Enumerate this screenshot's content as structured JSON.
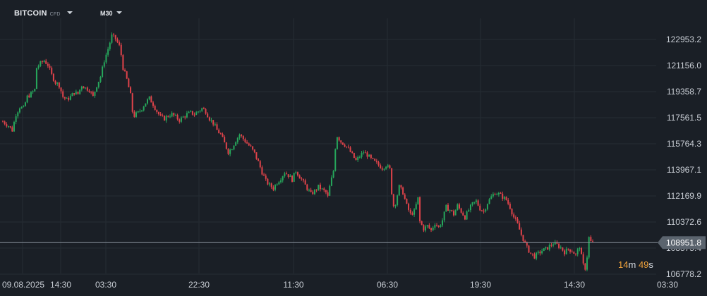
{
  "header": {
    "symbol": "BITCOIN",
    "symbol_type": "CFD",
    "timeframe": "M30"
  },
  "countdown": {
    "minutes": "14",
    "minutes_unit": "m",
    "seconds": "49",
    "seconds_unit": "s"
  },
  "colors": {
    "background": "#1a1f26",
    "grid": "#252c34",
    "up": "#26a65b",
    "down": "#e0434a",
    "price_line": "#8a939d",
    "price_tag_bg": "#5b646e",
    "countdown": "#f0a23a"
  },
  "chart_data": {
    "type": "candlestick",
    "instrument": "BITCOIN CFD",
    "timeframe": "M30",
    "y_ticks": [
      "122953.2",
      "121156.0",
      "119358.7",
      "117561.5",
      "115764.3",
      "113967.1",
      "112169.9",
      "110372.6",
      "108575.4",
      "106778.2"
    ],
    "y_range": [
      106778.2,
      122953.2
    ],
    "current_price": "108951.8",
    "x_ticks": [
      "09.08.2025",
      "14:30",
      "03:30",
      "22:30",
      "11:30",
      "06:30",
      "19:30",
      "14:30",
      "03:30"
    ],
    "grid": true,
    "close_path": [
      [
        0,
        117300
      ],
      [
        3,
        117000
      ],
      [
        5,
        116700
      ],
      [
        7,
        117800
      ],
      [
        9,
        118300
      ],
      [
        11,
        118200
      ],
      [
        13,
        119000
      ],
      [
        15,
        119200
      ],
      [
        17,
        119500
      ],
      [
        18,
        121000
      ],
      [
        20,
        121300
      ],
      [
        22,
        121500
      ],
      [
        24,
        121200
      ],
      [
        26,
        120500
      ],
      [
        28,
        120000
      ],
      [
        30,
        119800
      ],
      [
        32,
        119000
      ],
      [
        34,
        118800
      ],
      [
        36,
        119000
      ],
      [
        38,
        119300
      ],
      [
        40,
        119200
      ],
      [
        42,
        119800
      ],
      [
        44,
        119600
      ],
      [
        46,
        119500
      ],
      [
        48,
        119000
      ],
      [
        50,
        119800
      ],
      [
        52,
        120400
      ],
      [
        54,
        121500
      ],
      [
        56,
        122300
      ],
      [
        58,
        123200
      ],
      [
        60,
        123000
      ],
      [
        62,
        122500
      ],
      [
        63,
        121900
      ],
      [
        64,
        121000
      ],
      [
        66,
        120200
      ],
      [
        68,
        119100
      ],
      [
        69,
        118000
      ],
      [
        70,
        117700
      ],
      [
        72,
        117900
      ],
      [
        74,
        118200
      ],
      [
        76,
        118600
      ],
      [
        78,
        118900
      ],
      [
        80,
        118500
      ],
      [
        82,
        118000
      ],
      [
        84,
        117600
      ],
      [
        86,
        117500
      ],
      [
        88,
        117700
      ],
      [
        90,
        117800
      ],
      [
        92,
        117600
      ],
      [
        94,
        117400
      ],
      [
        96,
        117600
      ],
      [
        98,
        117800
      ],
      [
        100,
        117900
      ],
      [
        102,
        117800
      ],
      [
        104,
        118000
      ],
      [
        106,
        118200
      ],
      [
        108,
        118000
      ],
      [
        110,
        117500
      ],
      [
        112,
        117200
      ],
      [
        114,
        116700
      ],
      [
        116,
        116400
      ],
      [
        118,
        115800
      ],
      [
        120,
        115200
      ],
      [
        122,
        115500
      ],
      [
        124,
        116000
      ],
      [
        126,
        116400
      ],
      [
        128,
        116100
      ],
      [
        130,
        115800
      ],
      [
        132,
        115500
      ],
      [
        134,
        115100
      ],
      [
        136,
        114500
      ],
      [
        138,
        113800
      ],
      [
        140,
        113200
      ],
      [
        142,
        112900
      ],
      [
        144,
        112700
      ],
      [
        146,
        113100
      ],
      [
        148,
        113400
      ],
      [
        150,
        113800
      ],
      [
        152,
        113600
      ],
      [
        154,
        113300
      ],
      [
        156,
        113900
      ],
      [
        158,
        113500
      ],
      [
        160,
        113100
      ],
      [
        162,
        112700
      ],
      [
        164,
        112300
      ],
      [
        166,
        112500
      ],
      [
        168,
        112800
      ],
      [
        170,
        112600
      ],
      [
        172,
        112400
      ],
      [
        173,
        112100
      ],
      [
        174,
        112800
      ],
      [
        176,
        113900
      ],
      [
        177,
        115500
      ],
      [
        178,
        116300
      ],
      [
        180,
        115900
      ],
      [
        182,
        115700
      ],
      [
        184,
        115400
      ],
      [
        186,
        115000
      ],
      [
        188,
        114600
      ],
      [
        190,
        114900
      ],
      [
        192,
        115200
      ],
      [
        194,
        115000
      ],
      [
        196,
        114700
      ],
      [
        198,
        114500
      ],
      [
        200,
        114300
      ],
      [
        202,
        114100
      ],
      [
        204,
        114300
      ],
      [
        206,
        114000
      ],
      [
        207,
        112400
      ],
      [
        208,
        111500
      ],
      [
        209,
        111700
      ],
      [
        211,
        112800
      ],
      [
        213,
        112400
      ],
      [
        215,
        111500
      ],
      [
        217,
        110900
      ],
      [
        219,
        111100
      ],
      [
        221,
        112000
      ],
      [
        222,
        110400
      ],
      [
        224,
        109900
      ],
      [
        226,
        110100
      ],
      [
        228,
        109800
      ],
      [
        230,
        110300
      ],
      [
        232,
        110000
      ],
      [
        234,
        110500
      ],
      [
        236,
        111400
      ],
      [
        238,
        111200
      ],
      [
        240,
        110900
      ],
      [
        242,
        111500
      ],
      [
        244,
        111100
      ],
      [
        246,
        110700
      ],
      [
        248,
        111200
      ],
      [
        250,
        111600
      ],
      [
        252,
        111800
      ],
      [
        254,
        111300
      ],
      [
        256,
        111100
      ],
      [
        258,
        111700
      ],
      [
        260,
        112100
      ],
      [
        262,
        112400
      ],
      [
        264,
        112300
      ],
      [
        266,
        112100
      ],
      [
        268,
        111900
      ],
      [
        270,
        111400
      ],
      [
        272,
        110700
      ],
      [
        274,
        110200
      ],
      [
        276,
        109500
      ],
      [
        277,
        109200
      ],
      [
        279,
        108600
      ],
      [
        281,
        108200
      ],
      [
        283,
        108000
      ],
      [
        285,
        108200
      ],
      [
        287,
        108400
      ],
      [
        289,
        108500
      ],
      [
        291,
        108700
      ],
      [
        293,
        108900
      ],
      [
        295,
        108800
      ],
      [
        297,
        108600
      ],
      [
        299,
        108300
      ],
      [
        301,
        108500
      ],
      [
        303,
        108400
      ],
      [
        305,
        108100
      ],
      [
        307,
        108700
      ],
      [
        308,
        108000
      ],
      [
        309,
        107400
      ],
      [
        310,
        107200
      ],
      [
        311,
        108000
      ],
      [
        312,
        109300
      ],
      [
        313,
        109000
      ],
      [
        314,
        108951.8
      ]
    ]
  }
}
